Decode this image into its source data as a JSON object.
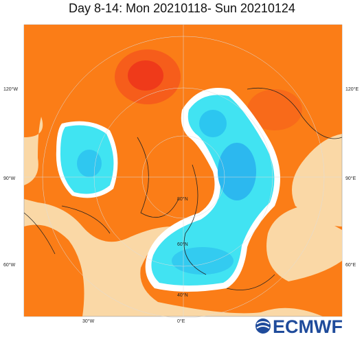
{
  "header": {
    "title": "Day 8-14: Mon 20210118- Sun 20210124"
  },
  "map": {
    "lon_labels": [
      "120°W",
      "90°W",
      "60°W",
      "30°W",
      "0°E",
      "120°E",
      "90°E",
      "60°E"
    ],
    "lat_labels": [
      "80°N",
      "60°N",
      "40°N"
    ]
  },
  "logo": {
    "text": "ECMWF"
  }
}
